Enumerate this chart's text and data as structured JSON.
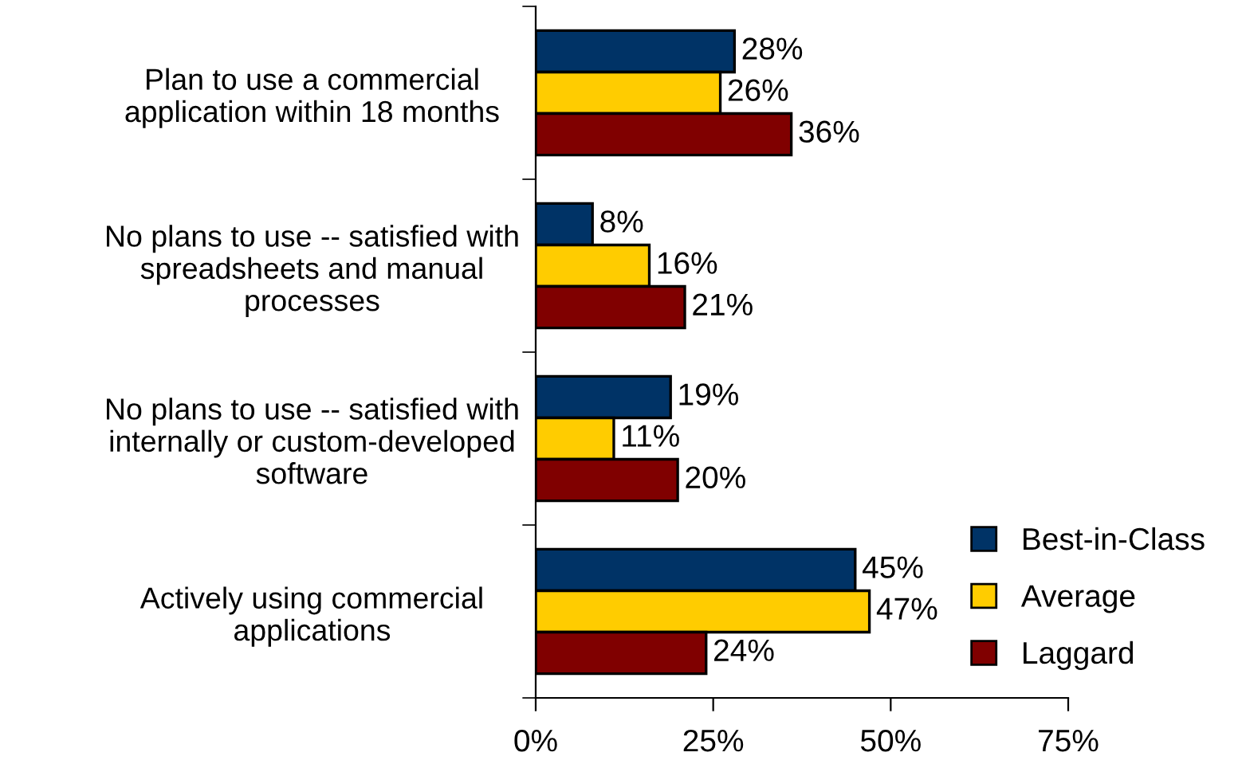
{
  "chart_data": {
    "type": "bar",
    "orientation": "horizontal",
    "categories": [
      "Plan to use a commercial\napplication within 18 months",
      "No plans to use -- satisfied with\nspreadsheets and manual\nprocesses",
      "No plans to use -- satisfied with\ninternally or custom-developed\nsoftware",
      "Actively using commercial\napplications"
    ],
    "series": [
      {
        "name": "Best-in-Class",
        "color": "#003366",
        "values": [
          28,
          8,
          19,
          45
        ],
        "value_labels": [
          "28%",
          "8%",
          "19%",
          "45%"
        ]
      },
      {
        "name": "Average",
        "color": "#ffcc00",
        "values": [
          26,
          16,
          11,
          47
        ],
        "value_labels": [
          "26%",
          "16%",
          "11%",
          "47%"
        ]
      },
      {
        "name": "Laggard",
        "color": "#800000",
        "values": [
          36,
          21,
          20,
          24
        ],
        "value_labels": [
          "36%",
          "21%",
          "20%",
          "24%"
        ]
      }
    ],
    "xlim": [
      0,
      75
    ],
    "xticks": [
      {
        "value": 0,
        "label": "0%"
      },
      {
        "value": 25,
        "label": "25%"
      },
      {
        "value": 50,
        "label": "50%"
      },
      {
        "value": 75,
        "label": "75%"
      }
    ],
    "grid": false,
    "legend": "bottom right"
  }
}
